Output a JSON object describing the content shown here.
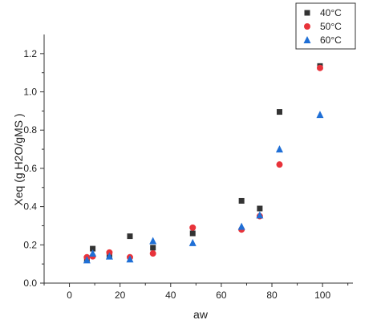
{
  "chart_data": {
    "type": "scatter",
    "xlabel": "aw",
    "ylabel": "Xeq (g H2O/gMS )",
    "xlim": [
      -10,
      112
    ],
    "ylim": [
      0,
      1.3
    ],
    "x_ticks": [
      "0",
      "20",
      "40",
      "60",
      "80",
      "100"
    ],
    "y_ticks": [
      "0.0",
      "0.2",
      "0.4",
      "0.6",
      "0.8",
      "1.0",
      "1.2"
    ],
    "grid": false,
    "legend": "top-right",
    "series": [
      {
        "name": "40°C",
        "marker": "square",
        "color": "#333333",
        "x": [
          6.9,
          9.2,
          15.8,
          23.9,
          33.0,
          48.7,
          68.0,
          75.2,
          83.0,
          99.0
        ],
        "y": [
          0.12,
          0.18,
          0.14,
          0.245,
          0.185,
          0.26,
          0.43,
          0.39,
          0.895,
          1.135
        ]
      },
      {
        "name": "50°C",
        "marker": "circle",
        "color": "#e8333a",
        "x": [
          6.9,
          9.2,
          15.8,
          23.9,
          33.0,
          48.7,
          68.0,
          75.2,
          83.0,
          99.0
        ],
        "y": [
          0.135,
          0.14,
          0.16,
          0.135,
          0.155,
          0.29,
          0.28,
          0.35,
          0.62,
          1.125
        ]
      },
      {
        "name": "60°C",
        "marker": "triangle",
        "color": "#1f6fd6",
        "x": [
          6.9,
          9.2,
          15.8,
          23.9,
          33.0,
          48.7,
          68.0,
          75.2,
          83.0,
          99.0
        ],
        "y": [
          0.12,
          0.155,
          0.14,
          0.125,
          0.22,
          0.21,
          0.295,
          0.355,
          0.7,
          0.88
        ]
      }
    ]
  }
}
